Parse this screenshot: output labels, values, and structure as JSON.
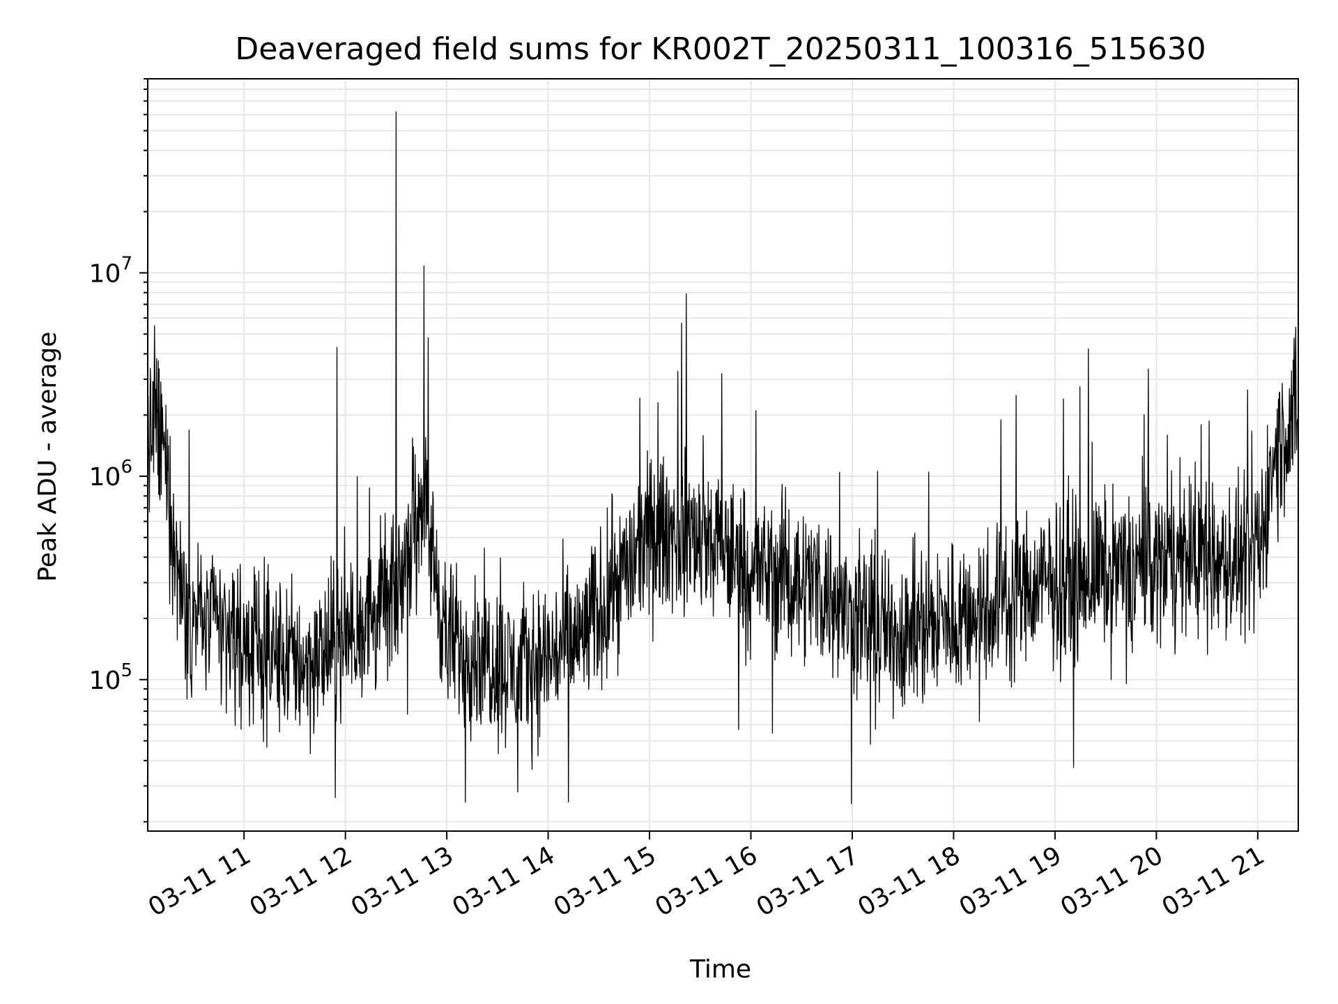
{
  "chart_data": {
    "type": "line",
    "title": "Deaveraged field sums for KR002T_20250311_100316_515630",
    "xlabel": "Time",
    "ylabel": "Peak ADU - average",
    "y_scale": "log",
    "ylim": [
      18000,
      90000000
    ],
    "xlim": [
      "2025-03-11 10:03",
      "2025-03-11 21:24"
    ],
    "grid": true,
    "line_color": "#000000",
    "grid_color": "#e6e6e6",
    "x_ticks": [
      {
        "value": "2025-03-11 11:00",
        "label": "03-11 11"
      },
      {
        "value": "2025-03-11 12:00",
        "label": "03-11 12"
      },
      {
        "value": "2025-03-11 13:00",
        "label": "03-11 13"
      },
      {
        "value": "2025-03-11 14:00",
        "label": "03-11 14"
      },
      {
        "value": "2025-03-11 15:00",
        "label": "03-11 15"
      },
      {
        "value": "2025-03-11 16:00",
        "label": "03-11 16"
      },
      {
        "value": "2025-03-11 17:00",
        "label": "03-11 17"
      },
      {
        "value": "2025-03-11 18:00",
        "label": "03-11 18"
      },
      {
        "value": "2025-03-11 19:00",
        "label": "03-11 19"
      },
      {
        "value": "2025-03-11 20:00",
        "label": "03-11 20"
      },
      {
        "value": "2025-03-11 21:00",
        "label": "03-11 21"
      }
    ],
    "y_ticks": [
      {
        "value": 100000,
        "base": "10",
        "exp": "5"
      },
      {
        "value": 1000000,
        "base": "10",
        "exp": "6"
      },
      {
        "value": 10000000,
        "base": "10",
        "exp": "7"
      }
    ],
    "series": [
      {
        "x": [
          "2025-03-11 10:03",
          "2025-03-11 10:10",
          "2025-03-11 10:15",
          "2025-03-11 10:20",
          "2025-03-11 10:30",
          "2025-03-11 10:45",
          "2025-03-11 11:00",
          "2025-03-11 11:20",
          "2025-03-11 11:40",
          "2025-03-11 12:00",
          "2025-03-11 12:20",
          "2025-03-11 12:30",
          "2025-03-11 12:45",
          "2025-03-11 13:00",
          "2025-03-11 13:20",
          "2025-03-11 13:40",
          "2025-03-11 14:00",
          "2025-03-11 14:20",
          "2025-03-11 14:40",
          "2025-03-11 15:00",
          "2025-03-11 15:20",
          "2025-03-11 15:40",
          "2025-03-11 16:00",
          "2025-03-11 16:20",
          "2025-03-11 16:40",
          "2025-03-11 17:00",
          "2025-03-11 17:20",
          "2025-03-11 17:40",
          "2025-03-11 18:00",
          "2025-03-11 18:20",
          "2025-03-11 18:40",
          "2025-03-11 19:00",
          "2025-03-11 19:20",
          "2025-03-11 19:40",
          "2025-03-11 20:00",
          "2025-03-11 20:20",
          "2025-03-11 20:40",
          "2025-03-11 21:00",
          "2025-03-11 21:10",
          "2025-03-11 21:24"
        ],
        "typical": [
          1800000,
          1600000,
          900000,
          350000,
          220000,
          180000,
          150000,
          130000,
          120000,
          160000,
          220000,
          250000,
          900000,
          150000,
          140000,
          110000,
          130000,
          160000,
          300000,
          500000,
          550000,
          450000,
          350000,
          320000,
          300000,
          200000,
          170000,
          180000,
          200000,
          230000,
          280000,
          300000,
          330000,
          350000,
          380000,
          400000,
          370000,
          380000,
          1300000,
          2000000
        ],
        "peaks": [
          {
            "x": "2025-03-11 10:07",
            "y": 5500000
          },
          {
            "x": "2025-03-11 11:55",
            "y": 4300000
          },
          {
            "x": "2025-03-11 12:30",
            "y": 62000000
          },
          {
            "x": "2025-03-11 12:49",
            "y": 4800000
          },
          {
            "x": "2025-03-11 15:05",
            "y": 2300000
          },
          {
            "x": "2025-03-11 16:03",
            "y": 2100000
          },
          {
            "x": "2025-03-11 18:37",
            "y": 2500000
          },
          {
            "x": "2025-03-11 19:05",
            "y": 2400000
          },
          {
            "x": "2025-03-11 21:20",
            "y": 3300000
          }
        ],
        "troughs": [
          {
            "x": "2025-03-11 13:11",
            "y": 25000
          },
          {
            "x": "2025-03-11 14:12",
            "y": 25000
          },
          {
            "x": "2025-03-11 13:42",
            "y": 28000
          },
          {
            "x": "2025-03-11 19:11",
            "y": 37000
          }
        ]
      }
    ]
  }
}
